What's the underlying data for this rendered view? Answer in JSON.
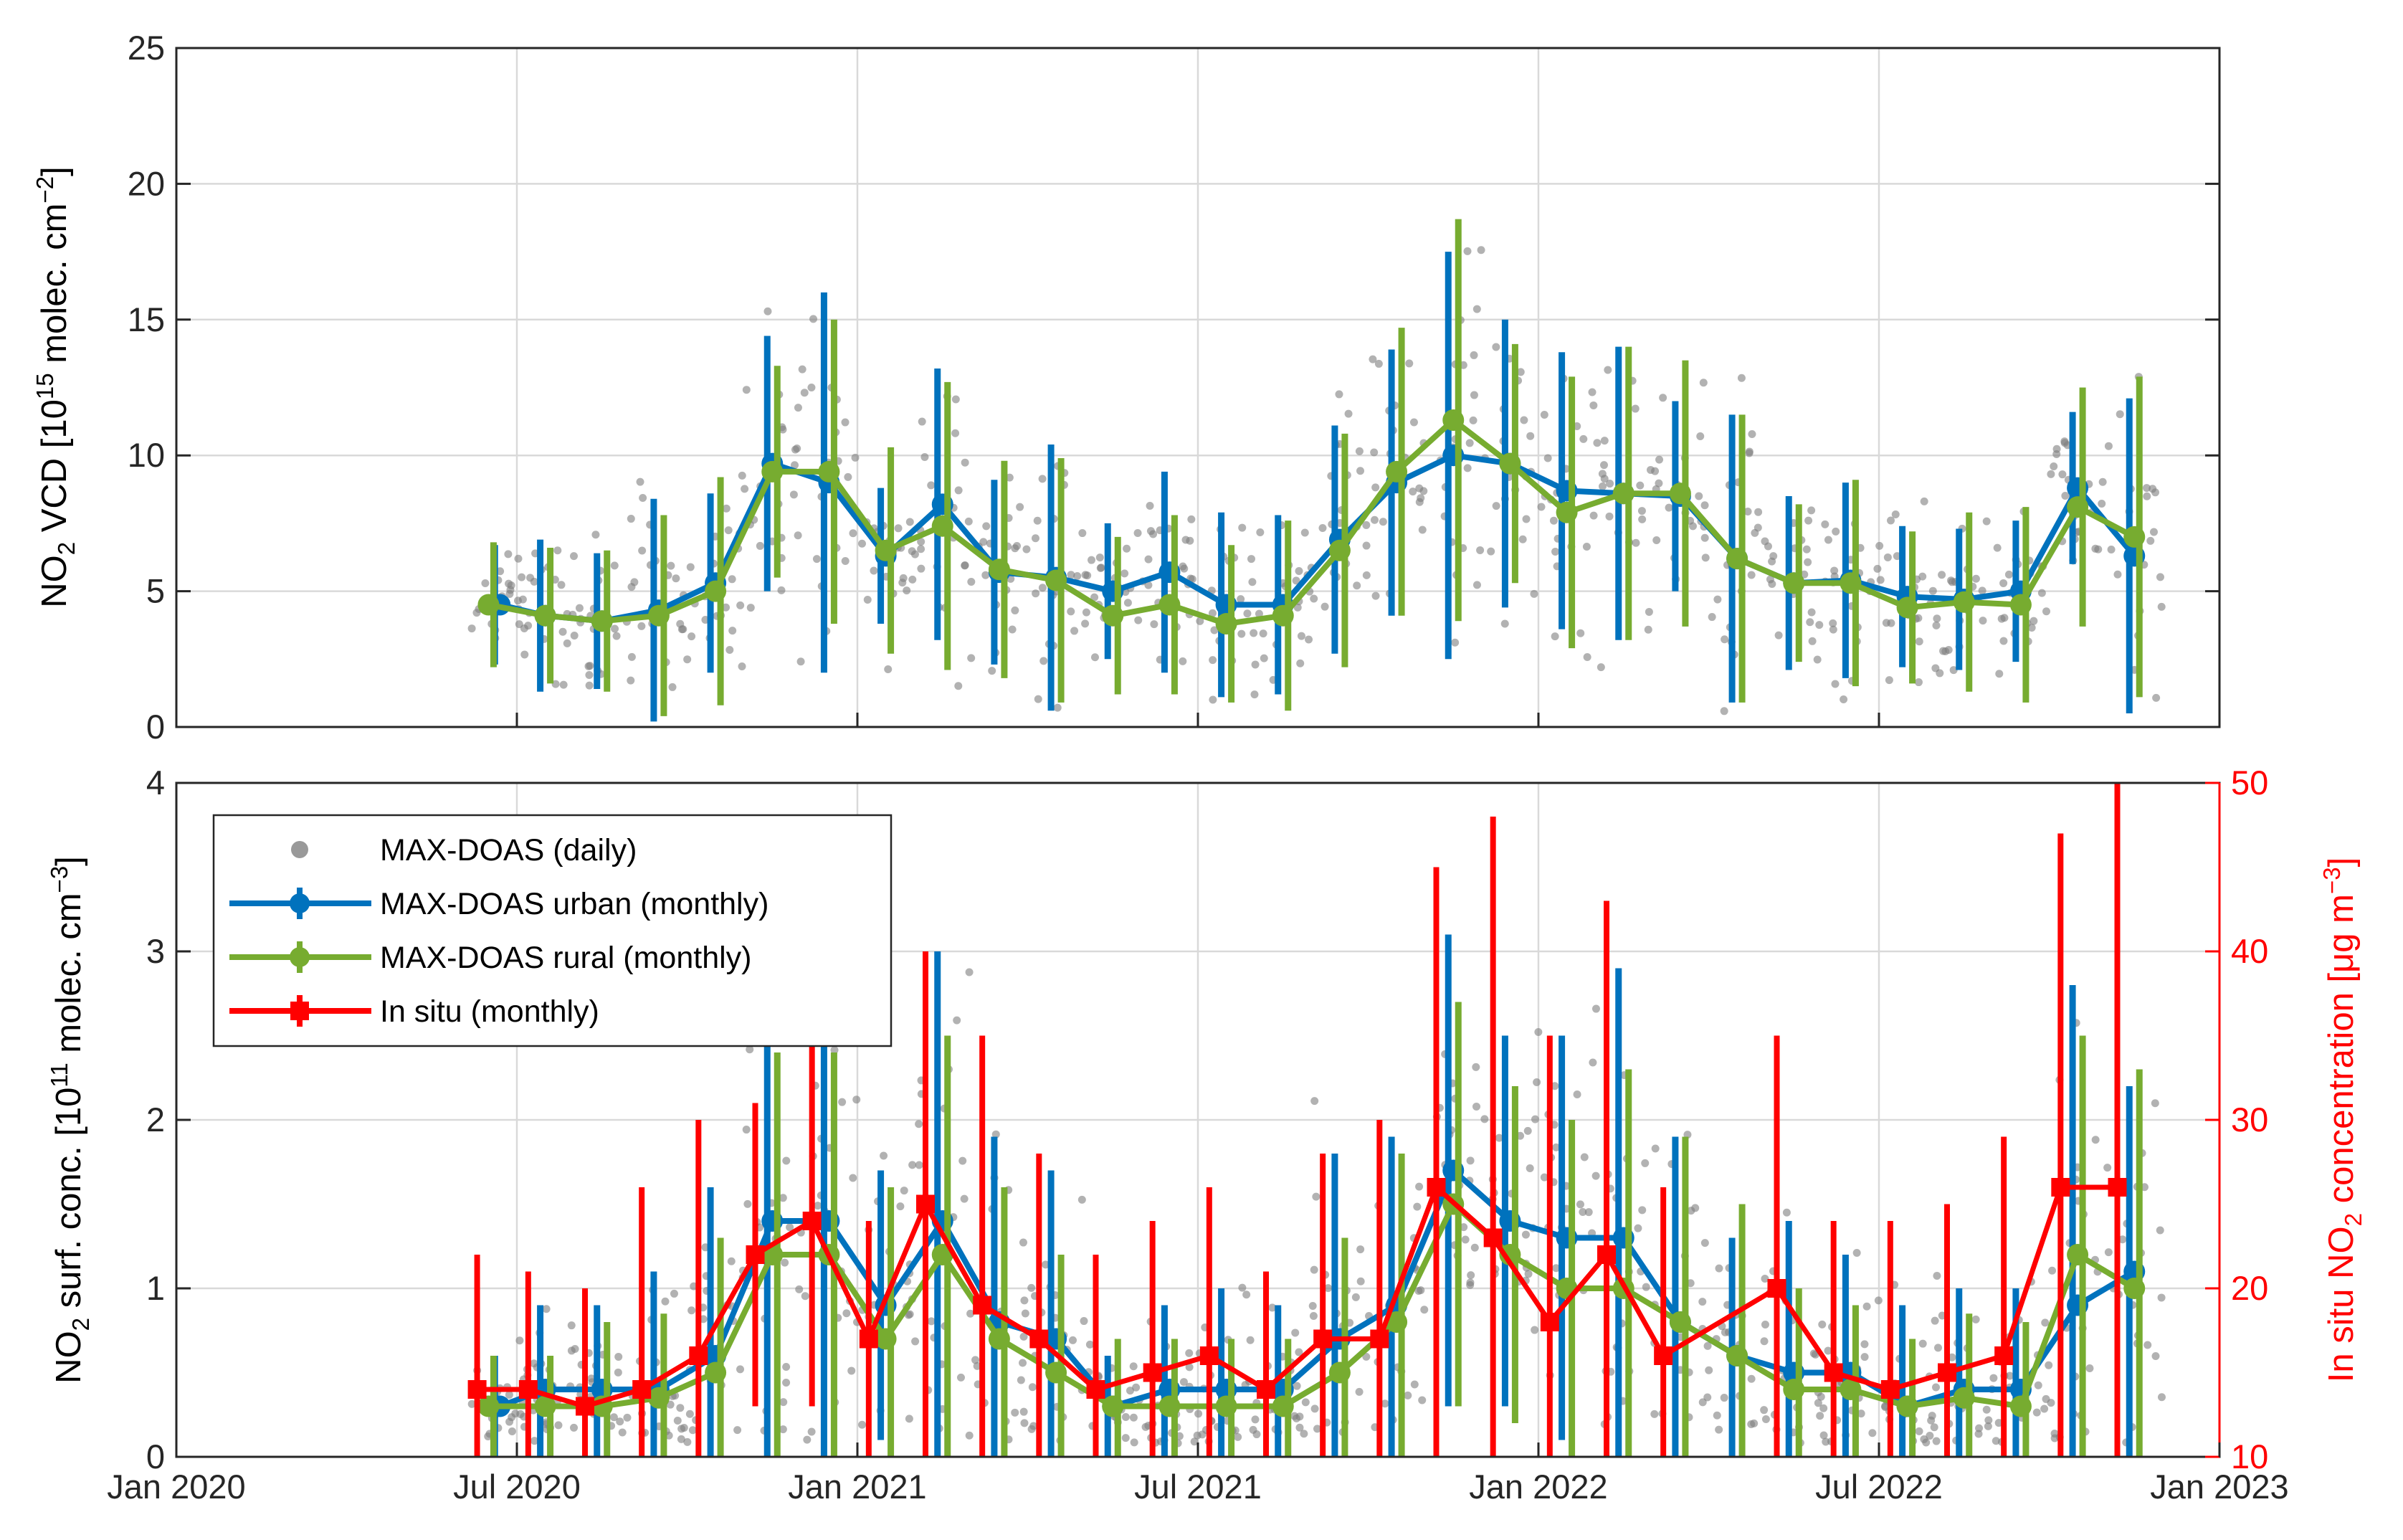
{
  "chart_data": [
    {
      "type": "scatter",
      "panel": "top",
      "ylabel_parts": [
        "NO",
        "2",
        " VCD [10",
        "15",
        " molec. cm",
        "−2",
        "]"
      ],
      "ylim": [
        0,
        25
      ],
      "yticks": [
        0,
        5,
        10,
        15,
        20,
        25
      ],
      "xlim": [
        "2020-01",
        "2023-01"
      ],
      "grid": true,
      "series": [
        {
          "name": "MAX-DOAS urban (monthly)",
          "color": "#0072BD",
          "x": [
            5.7,
            6.5,
            7.5,
            8.5,
            9.5,
            10.5,
            11.5,
            12.5,
            13.5,
            14.5,
            15.5,
            16.5,
            17.5,
            18.5,
            19.5,
            20.5,
            21.5,
            22.5,
            23.5,
            24.5,
            25.5,
            26.5,
            27.5,
            28.5,
            29.5,
            30.5,
            31.5,
            32.5,
            33.5,
            34.5
          ],
          "values": [
            4.5,
            4.1,
            3.9,
            4.3,
            5.3,
            9.7,
            9.0,
            6.3,
            8.2,
            5.7,
            5.5,
            5.0,
            5.7,
            4.5,
            4.5,
            6.9,
            9.0,
            10.0,
            9.7,
            8.7,
            8.6,
            8.5,
            6.2,
            5.3,
            5.4,
            4.8,
            4.7,
            5.0,
            8.8,
            6.3
          ],
          "err": [
            2.2,
            2.8,
            2.5,
            4.1,
            3.3,
            4.7,
            7.0,
            2.5,
            5.0,
            3.4,
            4.9,
            2.5,
            3.7,
            3.4,
            3.3,
            4.2,
            4.9,
            7.5,
            5.3,
            5.1,
            5.4,
            3.5,
            5.3,
            3.2,
            3.6,
            2.6,
            2.6,
            2.6,
            2.8,
            5.8
          ]
        },
        {
          "name": "MAX-DOAS rural (monthly)",
          "color": "#77AC30",
          "x": [
            5.5,
            6.5,
            7.5,
            8.5,
            9.5,
            10.5,
            11.5,
            12.5,
            13.5,
            14.5,
            15.5,
            16.5,
            17.5,
            18.5,
            19.5,
            20.5,
            21.5,
            22.5,
            23.5,
            24.5,
            25.5,
            26.5,
            27.5,
            28.5,
            29.5,
            30.5,
            31.5,
            32.5,
            33.5,
            34.5
          ],
          "values": [
            4.5,
            4.1,
            3.9,
            4.1,
            5.0,
            9.4,
            9.4,
            6.5,
            7.4,
            5.8,
            5.4,
            4.1,
            4.5,
            3.8,
            4.1,
            6.5,
            9.4,
            11.3,
            9.7,
            7.9,
            8.6,
            8.6,
            6.2,
            5.3,
            5.3,
            4.4,
            4.6,
            4.5,
            8.1,
            7.0
          ],
          "err": [
            2.3,
            2.5,
            2.6,
            3.7,
            4.2,
            3.9,
            5.6,
            3.8,
            5.3,
            4.0,
            4.5,
            2.9,
            3.3,
            2.9,
            3.5,
            4.3,
            5.3,
            7.4,
            4.4,
            5.0,
            5.4,
            4.9,
            5.3,
            2.9,
            3.8,
            2.8,
            3.3,
            3.6,
            4.4,
            5.9
          ]
        }
      ]
    },
    {
      "type": "scatter",
      "panel": "bottom",
      "ylabel_parts": [
        "NO",
        "2",
        " surf. conc. [10",
        "11",
        " molec. cm",
        "−3",
        "]"
      ],
      "y2label_parts": [
        "In situ NO",
        "2",
        " concentration [μg m",
        "−3",
        "]"
      ],
      "ylim": [
        0,
        4
      ],
      "yticks": [
        0,
        1,
        2,
        3,
        4
      ],
      "y2lim": [
        10,
        50
      ],
      "y2ticks": [
        10,
        20,
        30,
        40,
        50
      ],
      "xlim": [
        "2020-01",
        "2023-01"
      ],
      "xticks": [
        "Jan 2020",
        "Jul 2020",
        "Jan 2021",
        "Jul 2021",
        "Jan 2022",
        "Jul 2022",
        "Jan 2023"
      ],
      "grid": true,
      "legend_location": "upper-left",
      "legend": [
        {
          "label": "MAX-DOAS (daily)",
          "color": "#999999",
          "marker": "dot"
        },
        {
          "label": "MAX-DOAS urban (monthly)",
          "color": "#0072BD",
          "marker": "circle-errorbar"
        },
        {
          "label": "MAX-DOAS rural (monthly)",
          "color": "#77AC30",
          "marker": "circle-errorbar"
        },
        {
          "label": "In situ (monthly)",
          "color": "#FF0000",
          "marker": "square-errorbar"
        }
      ],
      "series": [
        {
          "name": "MAX-DOAS urban (monthly)",
          "color": "#0072BD",
          "x": [
            5.7,
            6.5,
            7.5,
            8.5,
            9.5,
            10.5,
            11.5,
            12.5,
            13.5,
            14.5,
            15.5,
            16.5,
            17.5,
            18.5,
            19.5,
            20.5,
            21.5,
            22.5,
            23.5,
            24.5,
            25.5,
            26.5,
            27.5,
            28.5,
            29.5,
            30.5,
            31.5,
            32.5,
            33.5,
            34.5
          ],
          "values": [
            0.3,
            0.4,
            0.4,
            0.4,
            0.6,
            1.4,
            1.4,
            0.9,
            1.4,
            0.8,
            0.7,
            0.3,
            0.4,
            0.4,
            0.4,
            0.7,
            0.9,
            1.7,
            1.4,
            1.3,
            1.3,
            0.8,
            0.6,
            0.5,
            0.5,
            0.3,
            0.4,
            0.4,
            0.9,
            1.1
          ],
          "err": [
            0.3,
            0.5,
            0.5,
            0.7,
            1.0,
            1.6,
            1.6,
            0.8,
            1.6,
            1.1,
            1.0,
            0.3,
            0.5,
            0.6,
            0.5,
            1.1,
            1.0,
            1.4,
            1.1,
            1.2,
            1.6,
            1.1,
            0.7,
            0.9,
            0.7,
            0.6,
            0.6,
            0.6,
            1.9,
            1.1
          ]
        },
        {
          "name": "MAX-DOAS rural (monthly)",
          "color": "#77AC30",
          "x": [
            5.5,
            6.5,
            7.5,
            8.5,
            9.5,
            10.5,
            11.5,
            12.5,
            13.5,
            14.5,
            15.5,
            16.5,
            17.5,
            18.5,
            19.5,
            20.5,
            21.5,
            22.5,
            23.5,
            24.5,
            25.5,
            26.5,
            27.5,
            28.5,
            29.5,
            30.5,
            31.5,
            32.5,
            33.5,
            34.5
          ],
          "values": [
            0.3,
            0.3,
            0.3,
            0.35,
            0.5,
            1.2,
            1.2,
            0.7,
            1.2,
            0.7,
            0.5,
            0.3,
            0.3,
            0.3,
            0.3,
            0.5,
            0.8,
            1.5,
            1.2,
            1.0,
            1.0,
            0.8,
            0.6,
            0.4,
            0.4,
            0.3,
            0.35,
            0.3,
            1.2,
            1.0
          ],
          "err": [
            0.3,
            0.3,
            0.5,
            0.5,
            0.8,
            1.2,
            1.2,
            0.9,
            1.3,
            0.9,
            0.7,
            0.4,
            0.4,
            0.4,
            0.4,
            0.8,
            1.0,
            1.2,
            1.0,
            1.0,
            1.3,
            1.1,
            0.9,
            0.6,
            0.5,
            0.4,
            0.5,
            0.5,
            1.3,
            1.3
          ]
        },
        {
          "name": "In situ (monthly)",
          "color": "#FF0000",
          "axis": "right",
          "x": [
            5.3,
            6.2,
            7.2,
            8.2,
            9.2,
            10.2,
            11.2,
            12.2,
            13.2,
            14.2,
            15.2,
            16.2,
            17.2,
            18.2,
            19.2,
            20.2,
            21.2,
            22.2,
            23.2,
            24.2,
            25.2,
            26.2,
            28.2,
            29.2,
            30.2,
            31.2,
            32.2,
            33.2,
            34.2
          ],
          "values": [
            14,
            14,
            13,
            14,
            16,
            22,
            24,
            17,
            25,
            19,
            17,
            14,
            15,
            16,
            14,
            17,
            17,
            26,
            23,
            18,
            22,
            16,
            20,
            15,
            14,
            15,
            16,
            26,
            26
          ],
          "err": [
            8,
            7,
            7,
            12,
            14,
            9,
            11,
            7,
            15,
            16,
            11,
            8,
            9,
            10,
            7,
            11,
            13,
            19,
            25,
            17,
            21,
            10,
            15,
            9,
            10,
            10,
            13,
            21,
            26
          ]
        }
      ]
    }
  ],
  "colors": {
    "daily": "#7f7f7f",
    "urban": "#0072BD",
    "rural": "#77AC30",
    "insitu": "#FF0000"
  }
}
